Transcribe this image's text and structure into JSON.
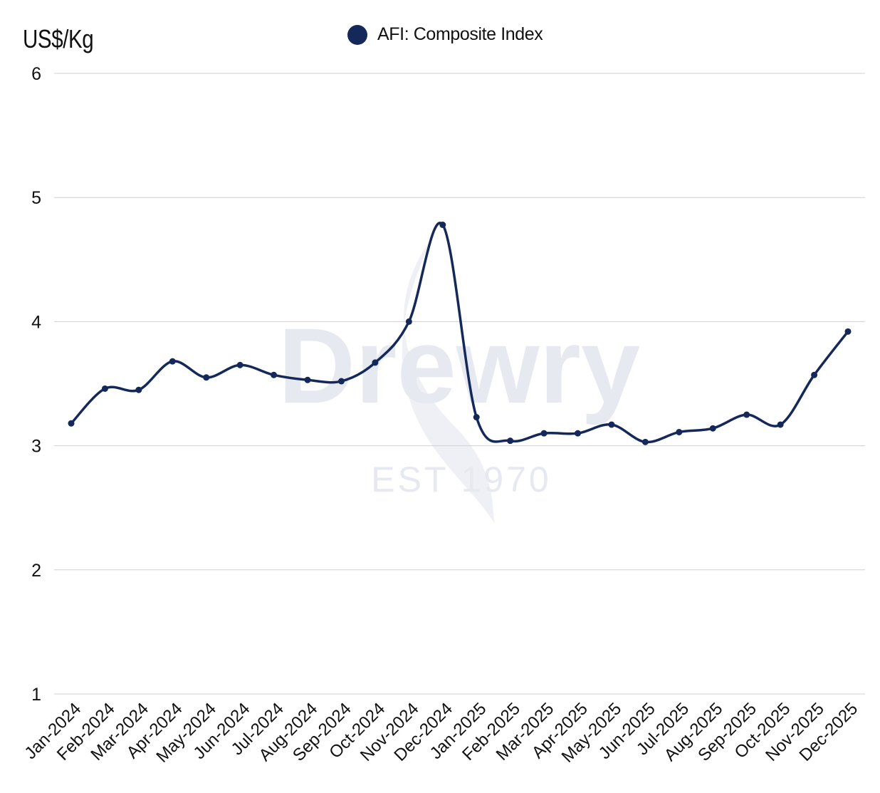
{
  "chart_data": {
    "type": "line",
    "unit_label": "US$/Kg",
    "categories": [
      "Jan-2024",
      "Feb-2024",
      "Mar-2024",
      "Apr-2024",
      "May-2024",
      "Jun-2024",
      "Jul-2024",
      "Aug-2024",
      "Sep-2024",
      "Oct-2024",
      "Nov-2024",
      "Dec-2024",
      "Jan-2025",
      "Feb-2025",
      "Mar-2025",
      "Apr-2025",
      "May-2025",
      "Jun-2025",
      "Jul-2025",
      "Aug-2025",
      "Sep-2025",
      "Oct-2025",
      "Nov-2025",
      "Dec-2025"
    ],
    "series": [
      {
        "name": "AFI: Composite Index",
        "color": "#14285a",
        "values": [
          3.18,
          3.46,
          3.45,
          3.68,
          3.55,
          3.65,
          3.57,
          3.53,
          3.52,
          3.67,
          4.0,
          4.78,
          3.23,
          3.04,
          3.1,
          3.1,
          3.17,
          3.03,
          3.11,
          3.14,
          3.25,
          3.17,
          3.57,
          3.92
        ]
      }
    ],
    "ylim": [
      1,
      6
    ],
    "yticks": [
      "1",
      "2",
      "3",
      "4",
      "5",
      "6"
    ],
    "grid": true,
    "legend_position": "top-center"
  },
  "watermark": {
    "brand": "Drewry",
    "tagline": "EST 1970"
  }
}
